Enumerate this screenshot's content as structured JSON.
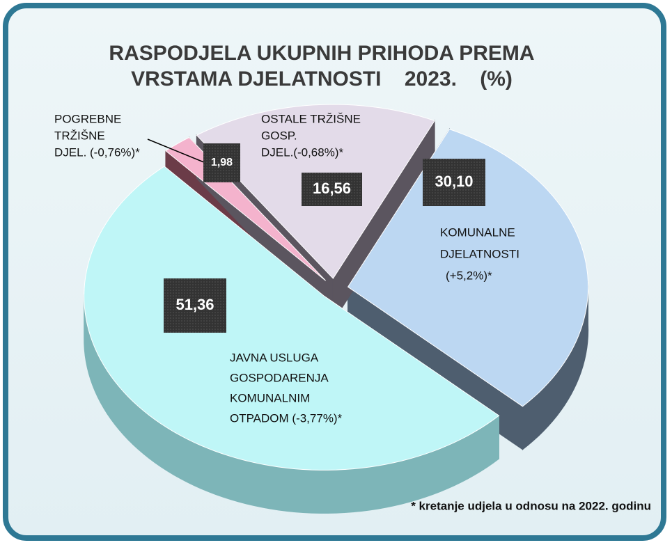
{
  "chart_data": {
    "type": "pie3d",
    "title": [
      "RASPODJELA UKUPNIH PRIHODA PREMA",
      "VRSTAMA DJELATNOSTI    2023.    (%)"
    ],
    "categories": [
      [
        "KOMUNALNE",
        "DJELATNOSTI",
        "(+5,2%)*"
      ],
      [
        "JAVNA USLUGA",
        "GOSPODARENJA",
        "KOMUNALNIM",
        "OTPADOM (-3,77%)*"
      ],
      [
        "POGREBNE",
        "TRŽIŠNE",
        "DJEL. (-0,76%)*"
      ],
      [
        "OSTALE TRŽIŠNE",
        "GOSP.",
        "DJEL.(-0,68%)*"
      ]
    ],
    "values": [
      30.1,
      51.36,
      1.98,
      16.56
    ],
    "value_labels": [
      "30,10",
      "51,36",
      "1,98",
      "16,56"
    ],
    "colors": [
      "#bcd7f2",
      "#bff6f7",
      "#f4b3cd",
      "#e3dbe9"
    ],
    "side_colors": [
      "#4e5e6f",
      "#7db5b8",
      "#6b3c48",
      "#5b555f"
    ],
    "note": "* kretanje udjela u odnosu na 2022. godinu"
  }
}
